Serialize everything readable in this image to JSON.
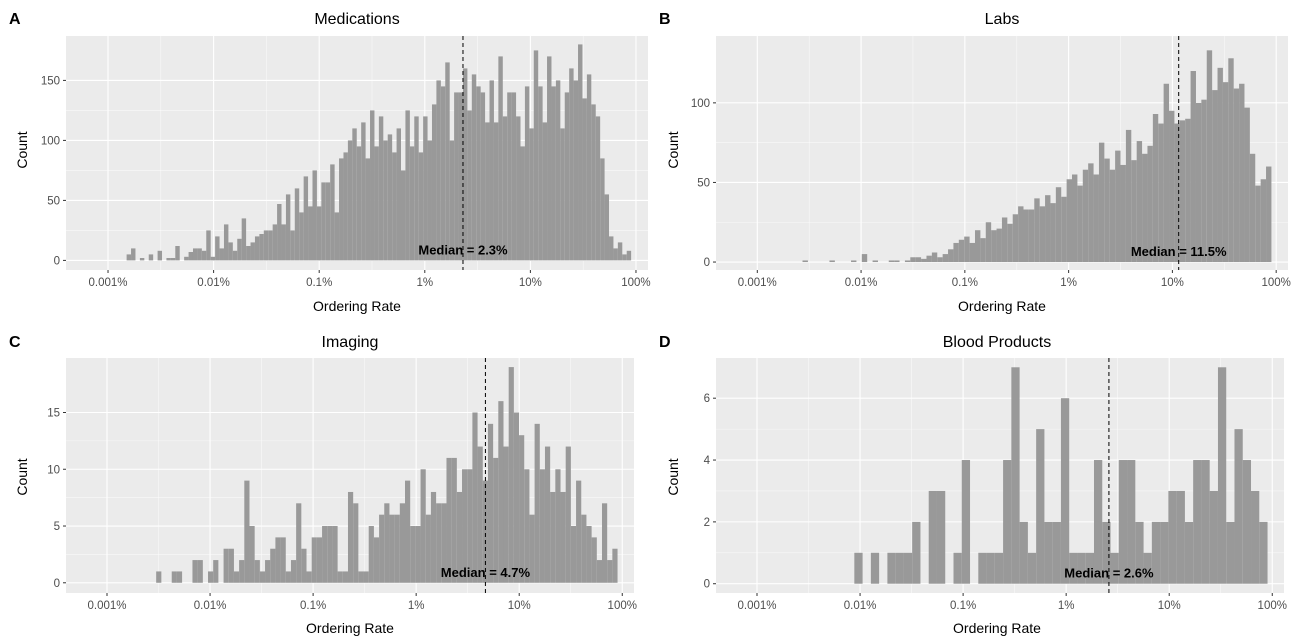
{
  "chart_data": [
    {
      "type": "bar",
      "letter": "A",
      "title": "Medications",
      "xlabel": "Ordering Rate",
      "ylabel": "Count",
      "x_scale": "log10",
      "x_ticks": [
        0.001,
        0.01,
        0.1,
        1,
        10,
        100
      ],
      "x_tick_labels": [
        "0.001%",
        "0.01%",
        "0.1%",
        "1%",
        "10%",
        "100%"
      ],
      "xlim": [
        0.0004,
        130
      ],
      "y_ticks": [
        0,
        50,
        100,
        150
      ],
      "ylim": [
        -8,
        187
      ],
      "bin_start": 0.0015,
      "bin_end": 90,
      "counts": [
        5,
        10,
        0,
        2,
        0,
        5,
        0,
        8,
        0,
        2,
        2,
        12,
        0,
        3,
        7,
        10,
        10,
        8,
        25,
        3,
        20,
        10,
        30,
        15,
        8,
        18,
        35,
        12,
        15,
        20,
        22,
        25,
        25,
        30,
        47,
        30,
        55,
        25,
        60,
        40,
        70,
        45,
        75,
        45,
        65,
        65,
        80,
        40,
        85,
        90,
        100,
        110,
        95,
        115,
        85,
        125,
        95,
        120,
        100,
        105,
        90,
        110,
        75,
        125,
        95,
        120,
        90,
        120,
        100,
        130,
        150,
        145,
        165,
        100,
        140,
        140,
        160,
        125,
        155,
        145,
        140,
        115,
        150,
        115,
        170,
        120,
        140,
        140,
        120,
        95,
        145,
        110,
        175,
        145,
        115,
        170,
        145,
        150,
        110,
        140,
        160,
        150,
        180,
        135,
        155,
        130,
        120,
        85,
        55,
        20,
        10,
        15,
        5,
        8
      ],
      "median": 2.3,
      "median_label": "Median = 2.3%"
    },
    {
      "type": "bar",
      "letter": "B",
      "title": "Labs",
      "xlabel": "Ordering Rate",
      "ylabel": "Count",
      "x_scale": "log10",
      "x_ticks": [
        0.001,
        0.01,
        0.1,
        1,
        10,
        100
      ],
      "x_tick_labels": [
        "0.001%",
        "0.01%",
        "0.1%",
        "1%",
        "10%",
        "100%"
      ],
      "xlim": [
        0.0004,
        130
      ],
      "y_ticks": [
        0,
        50,
        100
      ],
      "ylim": [
        -5,
        142
      ],
      "bin_start": 0.0015,
      "bin_end": 90,
      "counts": [
        0,
        0,
        0,
        0,
        0,
        1,
        0,
        0,
        0,
        0,
        1,
        0,
        0,
        0,
        1,
        0,
        5,
        0,
        1,
        0,
        0,
        1,
        1,
        0,
        1,
        3,
        3,
        2,
        4,
        6,
        3,
        5,
        8,
        12,
        14,
        16,
        12,
        20,
        15,
        25,
        20,
        21,
        28,
        24,
        30,
        35,
        33,
        33,
        40,
        35,
        42,
        37,
        47,
        41,
        52,
        55,
        48,
        58,
        62,
        55,
        75,
        65,
        58,
        70,
        61,
        83,
        64,
        76,
        68,
        73,
        93,
        87,
        112,
        95,
        87,
        89,
        90,
        120,
        100,
        102,
        133,
        108,
        122,
        113,
        128,
        109,
        112,
        97,
        68,
        48,
        52,
        60
      ],
      "median": 11.5,
      "median_label": "Median = 11.5%"
    },
    {
      "type": "bar",
      "letter": "C",
      "title": "Imaging",
      "xlabel": "Ordering Rate",
      "ylabel": "Count",
      "x_scale": "log10",
      "x_ticks": [
        0.001,
        0.01,
        0.1,
        1,
        10,
        100
      ],
      "x_tick_labels": [
        "0.001%",
        "0.01%",
        "0.1%",
        "1%",
        "10%",
        "100%"
      ],
      "xlim": [
        0.0004,
        130
      ],
      "y_ticks": [
        0,
        5,
        10,
        15
      ],
      "ylim": [
        -0.9,
        19.8
      ],
      "bin_start": 0.003,
      "bin_end": 90,
      "counts": [
        1,
        0,
        0,
        1,
        1,
        0,
        0,
        2,
        2,
        0,
        1,
        2,
        0,
        3,
        3,
        1,
        2,
        9,
        5,
        2,
        1,
        2,
        3,
        4,
        4,
        1,
        2,
        7,
        3,
        1,
        4,
        4,
        5,
        5,
        5,
        1,
        1,
        8,
        7,
        1,
        1,
        5,
        4,
        6,
        7,
        6,
        6,
        7,
        9,
        5,
        5,
        10,
        6,
        8,
        7,
        7,
        11,
        11,
        8,
        10,
        10,
        15,
        12,
        9,
        14,
        11,
        16,
        12,
        19,
        15,
        13,
        10,
        6,
        14,
        10,
        12,
        8,
        10,
        8,
        12,
        5,
        9,
        6,
        5,
        4,
        2,
        7,
        2,
        3
      ],
      "median": 4.7,
      "median_label": "Median = 4.7%"
    },
    {
      "type": "bar",
      "letter": "D",
      "title": "Blood Products",
      "xlabel": "Ordering Rate",
      "ylabel": "Count",
      "x_scale": "log10",
      "x_ticks": [
        0.001,
        0.01,
        0.1,
        1,
        10,
        100
      ],
      "x_tick_labels": [
        "0.001%",
        "0.01%",
        "0.1%",
        "1%",
        "10%",
        "100%"
      ],
      "xlim": [
        0.0004,
        130
      ],
      "y_ticks": [
        0,
        2,
        4,
        6
      ],
      "ylim": [
        -0.3,
        7.3
      ],
      "bin_start": 0.0088,
      "bin_end": 90,
      "counts": [
        1,
        0,
        1,
        0,
        1,
        1,
        1,
        2,
        0,
        3,
        3,
        0,
        1,
        4,
        0,
        1,
        1,
        1,
        4,
        7,
        2,
        1,
        5,
        2,
        2,
        6,
        1,
        1,
        1,
        4,
        2,
        1,
        4,
        4,
        2,
        1,
        2,
        2,
        3,
        3,
        2,
        4,
        4,
        3,
        7,
        2,
        5,
        4,
        3,
        2
      ],
      "median": 2.6,
      "median_label": "Median = 2.6%"
    }
  ],
  "colors": {
    "panel_bg": "#ebebeb",
    "grid_major": "#ffffff",
    "bar_fill": "#999999",
    "tick_text": "#4d4d4d",
    "median_line": "#000000"
  }
}
